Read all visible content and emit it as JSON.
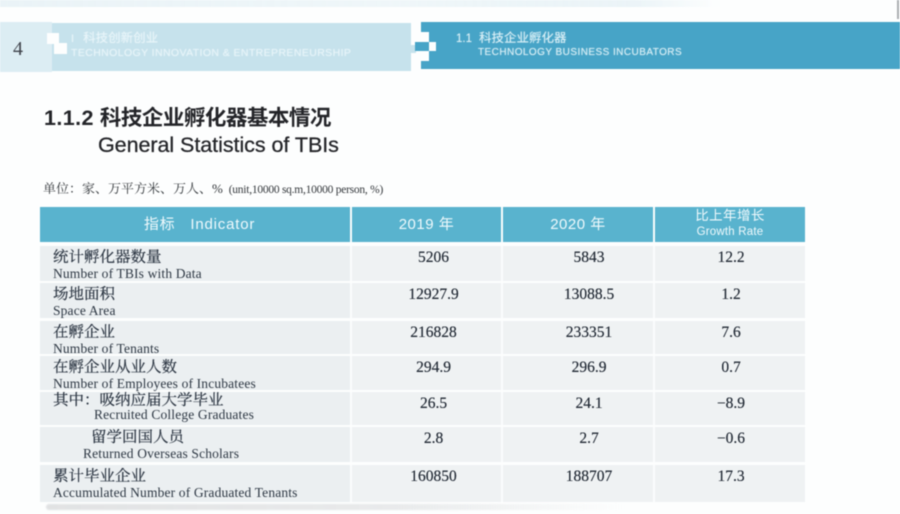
{
  "page": {
    "number": "4",
    "header_left": {
      "prefix": "I",
      "title_zh": "科技创新创业",
      "title_en": "TECHNOLOGY INNOVATION & ENTREPRENEURSHIP"
    },
    "header_right": {
      "number": "1.1",
      "title_zh": "科技企业孵化器",
      "title_en": "TECHNOLOGY BUSINESS INCUBATORS"
    }
  },
  "section": {
    "number": "1.1.2",
    "title_zh": "科技企业孵化器基本情况",
    "title_en": "General Statistics of TBIs",
    "unit_zh": "单位：家、万平方米、万人、%",
    "unit_en": "(unit,10000 sq.m,10000 person, %)"
  },
  "table": {
    "columns": {
      "indicator": "指标 Indicator",
      "y2019": "2019 年",
      "y2020": "2020 年",
      "growth_zh": "比上年增长",
      "growth_en": "Growth Rate"
    },
    "rows": [
      {
        "zh": "统计孵化器数量",
        "en": "Number of TBIs with Data",
        "v2019": "5206",
        "v2020": "5843",
        "growth": "12.2",
        "indent": 0,
        "prefix": ""
      },
      {
        "zh": "场地面积",
        "en": "Space Area",
        "v2019": "12927.9",
        "v2020": "13088.5",
        "growth": "1.2",
        "indent": 0,
        "prefix": ""
      },
      {
        "zh": "在孵企业",
        "en": "Number of Tenants",
        "v2019": "216828",
        "v2020": "233351",
        "growth": "7.6",
        "indent": 0,
        "prefix": ""
      },
      {
        "zh": "在孵企业从业人数",
        "en": "Number of Employees of Incubatees",
        "v2019": "294.9",
        "v2020": "296.9",
        "growth": "0.7",
        "indent": 0,
        "prefix": ""
      },
      {
        "zh": "吸纳应届大学毕业",
        "en": "Recruited College Graduates",
        "v2019": "26.5",
        "v2020": "24.1",
        "growth": "−8.9",
        "indent": 1,
        "prefix": "其中："
      },
      {
        "zh": "留学回国人员",
        "en": "Returned Overseas Scholars",
        "v2019": "2.8",
        "v2020": "2.7",
        "growth": "−0.6",
        "indent": 2,
        "prefix": ""
      },
      {
        "zh": "累计毕业企业",
        "en": "Accumulated Number of Graduated Tenants",
        "v2019": "160850",
        "v2020": "188707",
        "growth": "17.3",
        "indent": 0,
        "prefix": ""
      }
    ]
  },
  "colors": {
    "band_pale": "#dcedf3",
    "band_light": "#c6e2ec",
    "band_dark": "#47a4c7",
    "table_header": "#59b3ce",
    "row_bg_indicator": "#ebeff1",
    "row_bg_value": "#eff2f3",
    "text_dark": "#2b3542"
  }
}
